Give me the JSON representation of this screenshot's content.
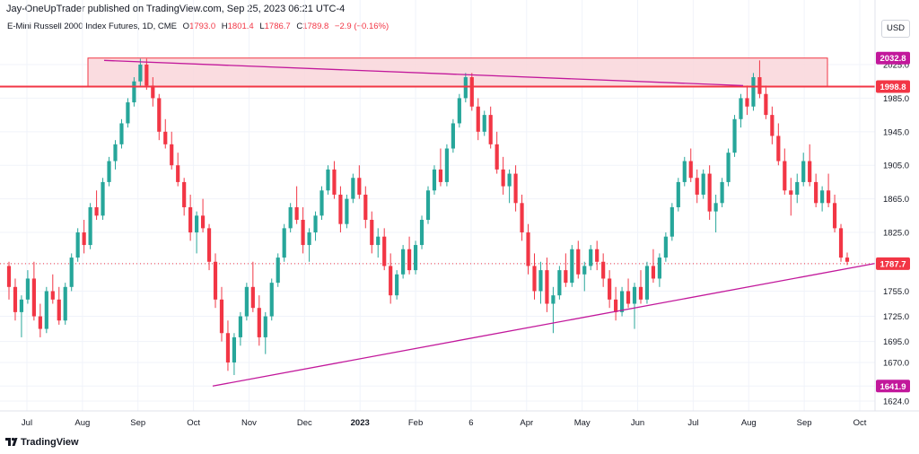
{
  "header": {
    "title": "Jay-OneUpTrader published on TradingView.com, Sep 25, 2023 06:21 UTC-4"
  },
  "symbol": {
    "name": "E-Mini Russell 2000 Index Futures, 1D, CME",
    "o_label": "O",
    "o_value": "1793.0",
    "h_label": "H",
    "h_value": "1801.4",
    "l_label": "L",
    "l_value": "1786.7",
    "c_label": "C",
    "c_value": "1789.8",
    "change": "−2.9 (−0.16%)"
  },
  "currency": "USD",
  "brand": {
    "name": "TradingView"
  },
  "colors": {
    "up": "#26a69a",
    "down": "#f23645",
    "trendline": "#c2189b",
    "resistance": "#f23645",
    "zone_fill": "#f9d6da"
  },
  "chart_data": {
    "type": "candlestick",
    "y_ticks": [
      "2025.0",
      "1985.0",
      "1945.0",
      "1905.0",
      "1865.0",
      "1825.0",
      "1787.7",
      "1755.0",
      "1725.0",
      "1695.0",
      "1670.0",
      "1641.9",
      "1624.0"
    ],
    "x_ticks": [
      "Jul",
      "Aug",
      "Sep",
      "Oct",
      "Nov",
      "Dec",
      "2023",
      "Feb",
      "6",
      "Apr",
      "May",
      "Jun",
      "Jul",
      "Aug",
      "Sep",
      "Oct"
    ],
    "price_labels": [
      {
        "value": 2032.8,
        "text": "2032.8",
        "color": "#c2189b"
      },
      {
        "value": 1998.8,
        "text": "1998.8",
        "color": "#f23645"
      },
      {
        "value": 1787.7,
        "text": "1787.7",
        "color": "#f23645"
      },
      {
        "value": 1641.9,
        "text": "1641.9",
        "color": "#c2189b"
      }
    ],
    "last_price": 1787.7,
    "resistance_level": 1998.8,
    "resistance_zone": {
      "from": "Aug",
      "to": "Sep",
      "low": 1998.8,
      "high": 2032.8
    },
    "descending_trendline": {
      "start_price": 2030,
      "end_price": 2000
    },
    "ascending_trendline": {
      "start_price": 1641.9,
      "end_price": 1788
    },
    "series": [
      {
        "candles": [
          [
            1785,
            1790,
            1745,
            1760
          ],
          [
            1760,
            1770,
            1720,
            1730
          ],
          [
            1730,
            1750,
            1700,
            1745
          ],
          [
            1745,
            1780,
            1740,
            1770
          ],
          [
            1770,
            1790,
            1720,
            1725
          ],
          [
            1725,
            1740,
            1700,
            1710
          ],
          [
            1710,
            1760,
            1705,
            1755
          ],
          [
            1755,
            1775,
            1740,
            1745
          ],
          [
            1745,
            1760,
            1715,
            1720
          ],
          [
            1720,
            1765,
            1715,
            1760
          ],
          [
            1760,
            1800,
            1755,
            1795
          ],
          [
            1795,
            1830,
            1790,
            1825
          ],
          [
            1825,
            1840,
            1800,
            1810
          ],
          [
            1810,
            1860,
            1805,
            1855
          ],
          [
            1855,
            1875,
            1840,
            1845
          ],
          [
            1845,
            1890,
            1840,
            1885
          ],
          [
            1885,
            1915,
            1880,
            1910
          ],
          [
            1910,
            1935,
            1900,
            1930
          ],
          [
            1930,
            1960,
            1925,
            1955
          ],
          [
            1955,
            1985,
            1950,
            1980
          ],
          [
            1980,
            2010,
            1975,
            2005
          ],
          [
            2005,
            2032,
            1998,
            2025
          ],
          [
            2025,
            2032,
            1995,
            2000
          ],
          [
            2000,
            2010,
            1975,
            1985
          ],
          [
            1985,
            1990,
            1935,
            1945
          ],
          [
            1945,
            1960,
            1925,
            1930
          ],
          [
            1930,
            1945,
            1900,
            1905
          ],
          [
            1905,
            1920,
            1880,
            1885
          ],
          [
            1885,
            1890,
            1845,
            1855
          ],
          [
            1855,
            1870,
            1815,
            1825
          ],
          [
            1825,
            1850,
            1800,
            1845
          ],
          [
            1845,
            1865,
            1825,
            1830
          ],
          [
            1830,
            1835,
            1780,
            1790
          ],
          [
            1790,
            1800,
            1735,
            1745
          ],
          [
            1745,
            1760,
            1695,
            1705
          ],
          [
            1705,
            1720,
            1660,
            1670
          ],
          [
            1670,
            1705,
            1655,
            1700
          ],
          [
            1700,
            1730,
            1690,
            1725
          ],
          [
            1725,
            1765,
            1720,
            1760
          ],
          [
            1760,
            1790,
            1730,
            1735
          ],
          [
            1735,
            1750,
            1690,
            1700
          ],
          [
            1700,
            1730,
            1680,
            1725
          ],
          [
            1725,
            1770,
            1720,
            1765
          ],
          [
            1765,
            1800,
            1760,
            1795
          ],
          [
            1795,
            1835,
            1790,
            1830
          ],
          [
            1830,
            1860,
            1825,
            1855
          ],
          [
            1855,
            1880,
            1835,
            1840
          ],
          [
            1840,
            1855,
            1800,
            1810
          ],
          [
            1810,
            1830,
            1790,
            1825
          ],
          [
            1825,
            1850,
            1815,
            1845
          ],
          [
            1845,
            1880,
            1840,
            1875
          ],
          [
            1875,
            1905,
            1870,
            1900
          ],
          [
            1900,
            1910,
            1865,
            1870
          ],
          [
            1870,
            1880,
            1825,
            1835
          ],
          [
            1835,
            1870,
            1830,
            1865
          ],
          [
            1865,
            1895,
            1860,
            1890
          ],
          [
            1890,
            1905,
            1865,
            1870
          ],
          [
            1870,
            1880,
            1830,
            1840
          ],
          [
            1840,
            1850,
            1800,
            1810
          ],
          [
            1810,
            1830,
            1795,
            1820
          ],
          [
            1820,
            1830,
            1780,
            1785
          ],
          [
            1785,
            1800,
            1740,
            1750
          ],
          [
            1750,
            1780,
            1745,
            1775
          ],
          [
            1775,
            1810,
            1770,
            1805
          ],
          [
            1805,
            1820,
            1775,
            1780
          ],
          [
            1780,
            1815,
            1775,
            1810
          ],
          [
            1810,
            1845,
            1805,
            1840
          ],
          [
            1840,
            1880,
            1835,
            1875
          ],
          [
            1875,
            1905,
            1870,
            1900
          ],
          [
            1900,
            1925,
            1880,
            1885
          ],
          [
            1885,
            1930,
            1880,
            1925
          ],
          [
            1925,
            1960,
            1920,
            1955
          ],
          [
            1955,
            1990,
            1950,
            1985
          ],
          [
            1985,
            2015,
            1980,
            2010
          ],
          [
            2010,
            2015,
            1970,
            1975
          ],
          [
            1975,
            1985,
            1935,
            1945
          ],
          [
            1945,
            1970,
            1940,
            1965
          ],
          [
            1965,
            1975,
            1925,
            1930
          ],
          [
            1930,
            1945,
            1895,
            1900
          ],
          [
            1900,
            1915,
            1870,
            1880
          ],
          [
            1880,
            1900,
            1860,
            1895
          ],
          [
            1895,
            1905,
            1850,
            1860
          ],
          [
            1860,
            1870,
            1815,
            1825
          ],
          [
            1825,
            1835,
            1775,
            1785
          ],
          [
            1785,
            1800,
            1745,
            1755
          ],
          [
            1755,
            1790,
            1740,
            1780
          ],
          [
            1780,
            1795,
            1730,
            1740
          ],
          [
            1740,
            1760,
            1705,
            1750
          ],
          [
            1750,
            1785,
            1745,
            1780
          ],
          [
            1780,
            1800,
            1760,
            1765
          ],
          [
            1765,
            1810,
            1760,
            1805
          ],
          [
            1805,
            1815,
            1770,
            1775
          ],
          [
            1775,
            1790,
            1755,
            1785
          ],
          [
            1785,
            1810,
            1780,
            1805
          ],
          [
            1805,
            1815,
            1780,
            1790
          ],
          [
            1790,
            1800,
            1760,
            1770
          ],
          [
            1770,
            1780,
            1735,
            1745
          ],
          [
            1745,
            1760,
            1720,
            1730
          ],
          [
            1730,
            1760,
            1725,
            1755
          ],
          [
            1755,
            1770,
            1735,
            1740
          ],
          [
            1740,
            1765,
            1710,
            1760
          ],
          [
            1760,
            1780,
            1740,
            1745
          ],
          [
            1745,
            1790,
            1740,
            1785
          ],
          [
            1785,
            1805,
            1765,
            1770
          ],
          [
            1770,
            1800,
            1760,
            1795
          ],
          [
            1795,
            1825,
            1790,
            1820
          ],
          [
            1820,
            1860,
            1815,
            1855
          ],
          [
            1855,
            1890,
            1850,
            1885
          ],
          [
            1885,
            1915,
            1880,
            1910
          ],
          [
            1910,
            1925,
            1885,
            1890
          ],
          [
            1890,
            1900,
            1860,
            1870
          ],
          [
            1870,
            1900,
            1865,
            1895
          ],
          [
            1895,
            1905,
            1840,
            1850
          ],
          [
            1850,
            1870,
            1825,
            1860
          ],
          [
            1860,
            1890,
            1855,
            1885
          ],
          [
            1885,
            1925,
            1880,
            1920
          ],
          [
            1920,
            1965,
            1915,
            1960
          ],
          [
            1960,
            1990,
            1950,
            1985
          ],
          [
            1985,
            2000,
            1965,
            1975
          ],
          [
            1975,
            2015,
            1970,
            2010
          ],
          [
            2010,
            2030,
            1985,
            1990
          ],
          [
            1990,
            2000,
            1960,
            1965
          ],
          [
            1965,
            1975,
            1930,
            1940
          ],
          [
            1940,
            1955,
            1905,
            1910
          ],
          [
            1910,
            1925,
            1870,
            1875
          ],
          [
            1875,
            1890,
            1845,
            1870
          ],
          [
            1870,
            1895,
            1860,
            1885
          ],
          [
            1885,
            1920,
            1880,
            1910
          ],
          [
            1910,
            1930,
            1880,
            1885
          ],
          [
            1885,
            1895,
            1855,
            1860
          ],
          [
            1860,
            1880,
            1850,
            1875
          ],
          [
            1875,
            1895,
            1855,
            1860
          ],
          [
            1860,
            1870,
            1825,
            1830
          ],
          [
            1830,
            1835,
            1790,
            1795
          ],
          [
            1795,
            1801,
            1786,
            1790
          ]
        ]
      }
    ]
  }
}
